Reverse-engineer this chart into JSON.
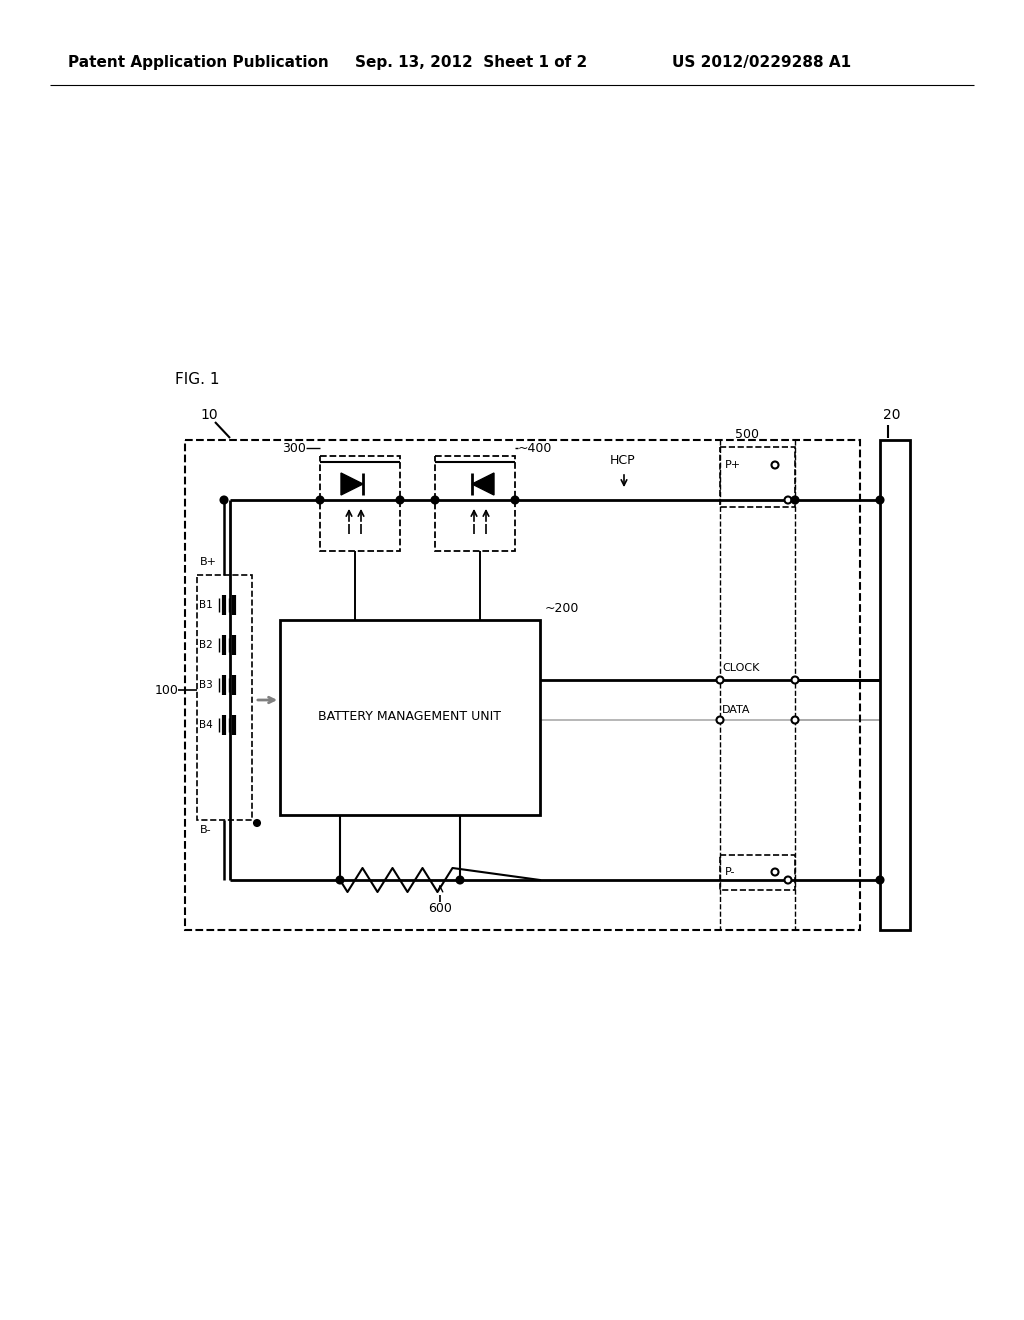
{
  "background_color": "#ffffff",
  "header_left": "Patent Application Publication",
  "header_mid": "Sep. 13, 2012  Sheet 1 of 2",
  "header_right": "US 2012/0229288 A1",
  "fig_label": "FIG. 1",
  "label_10": "10",
  "label_20": "20",
  "label_100": "100",
  "label_200": "~200",
  "label_300": "300",
  "label_400": "~400",
  "label_500": "500",
  "label_600": "600",
  "label_hcp": "HCP",
  "label_bmu": "BATTERY MANAGEMENT UNIT",
  "label_bp": "B+",
  "label_bm": "B-",
  "label_b1": "B1",
  "label_b2": "B2",
  "label_b3": "B3",
  "label_b4": "B4",
  "label_pp": "P+",
  "label_pm": "P-",
  "label_clock": "CLOCK",
  "label_data": "DATA"
}
